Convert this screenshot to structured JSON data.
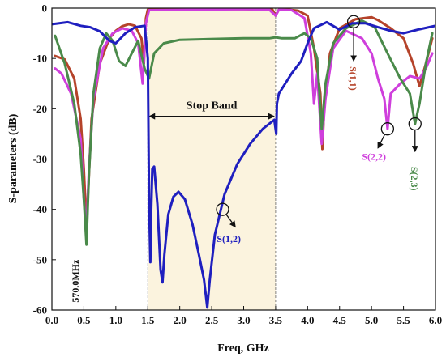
{
  "chart_data": {
    "type": "line",
    "xlabel": "Freq, GHz",
    "ylabel": "S-parameters (dB)",
    "xlim": [
      0,
      6
    ],
    "ylim": [
      -60,
      0
    ],
    "x_ticks": [
      "0.0",
      "0.5",
      "1.0",
      "1.5",
      "2.0",
      "2.5",
      "3.0",
      "3.5",
      "4.0",
      "4.5",
      "5.0",
      "5.5",
      "6.0"
    ],
    "y_ticks": [
      "0",
      "-10",
      "-20",
      "-30",
      "-40",
      "-50",
      "-60"
    ],
    "grid": false,
    "stop_band": {
      "x_start": 1.5,
      "x_end": 3.5,
      "label": "Stop Band",
      "arrow_y": -21.5,
      "fill_color": "#fbf3de"
    },
    "series": [
      {
        "name": "S(1,1)",
        "color": "#b5432a",
        "points": [
          [
            0.05,
            -9.5
          ],
          [
            0.2,
            -10.2
          ],
          [
            0.35,
            -14
          ],
          [
            0.45,
            -22
          ],
          [
            0.5,
            -32
          ],
          [
            0.54,
            -43
          ],
          [
            0.57,
            -36
          ],
          [
            0.62,
            -22
          ],
          [
            0.75,
            -11
          ],
          [
            0.9,
            -6
          ],
          [
            1.0,
            -4.5
          ],
          [
            1.1,
            -3.6
          ],
          [
            1.2,
            -3.2
          ],
          [
            1.3,
            -3.5
          ],
          [
            1.4,
            -6
          ],
          [
            1.44,
            -11
          ],
          [
            1.47,
            -2
          ],
          [
            1.5,
            -0.3
          ],
          [
            2.0,
            -0.2
          ],
          [
            3.0,
            -0.2
          ],
          [
            3.45,
            -0.3
          ],
          [
            3.5,
            -1.5
          ],
          [
            3.55,
            -0.3
          ],
          [
            3.7,
            -0.3
          ],
          [
            3.85,
            -0.5
          ],
          [
            4.0,
            -1.5
          ],
          [
            4.1,
            -8
          ],
          [
            4.2,
            -17
          ],
          [
            4.23,
            -28
          ],
          [
            4.26,
            -20
          ],
          [
            4.35,
            -9
          ],
          [
            4.5,
            -4
          ],
          [
            4.75,
            -2.2
          ],
          [
            5.0,
            -1.8
          ],
          [
            5.1,
            -2.4
          ],
          [
            5.3,
            -4
          ],
          [
            5.5,
            -6
          ],
          [
            5.65,
            -11
          ],
          [
            5.75,
            -15.5
          ],
          [
            5.85,
            -11
          ],
          [
            5.95,
            -6
          ]
        ]
      },
      {
        "name": "S(2,2)",
        "color": "#cf3fdc",
        "points": [
          [
            0.05,
            -12
          ],
          [
            0.15,
            -13
          ],
          [
            0.3,
            -17
          ],
          [
            0.45,
            -26
          ],
          [
            0.5,
            -38
          ],
          [
            0.54,
            -44
          ],
          [
            0.58,
            -32
          ],
          [
            0.65,
            -18
          ],
          [
            0.8,
            -8
          ],
          [
            0.95,
            -5
          ],
          [
            1.1,
            -4
          ],
          [
            1.25,
            -4.5
          ],
          [
            1.35,
            -7
          ],
          [
            1.42,
            -15
          ],
          [
            1.47,
            -3
          ],
          [
            1.52,
            -0.4
          ],
          [
            3.0,
            -0.2
          ],
          [
            3.4,
            -0.3
          ],
          [
            3.5,
            -1.5
          ],
          [
            3.55,
            -0.3
          ],
          [
            3.75,
            -0.4
          ],
          [
            3.95,
            -2
          ],
          [
            4.05,
            -9
          ],
          [
            4.1,
            -19
          ],
          [
            4.15,
            -13
          ],
          [
            4.22,
            -27
          ],
          [
            4.28,
            -18
          ],
          [
            4.4,
            -8
          ],
          [
            4.6,
            -4.5
          ],
          [
            4.85,
            -6
          ],
          [
            5.0,
            -9
          ],
          [
            5.1,
            -14
          ],
          [
            5.2,
            -18
          ],
          [
            5.25,
            -24
          ],
          [
            5.3,
            -17
          ],
          [
            5.45,
            -15
          ],
          [
            5.6,
            -13.5
          ],
          [
            5.75,
            -14
          ],
          [
            5.85,
            -12
          ],
          [
            5.95,
            -9
          ]
        ]
      },
      {
        "name": "S(2,3)",
        "color": "#4a8a4a",
        "points": [
          [
            0.05,
            -5.5
          ],
          [
            0.2,
            -11
          ],
          [
            0.35,
            -19
          ],
          [
            0.45,
            -29
          ],
          [
            0.5,
            -38
          ],
          [
            0.54,
            -47
          ],
          [
            0.58,
            -33
          ],
          [
            0.65,
            -17
          ],
          [
            0.75,
            -8
          ],
          [
            0.85,
            -5
          ],
          [
            0.95,
            -6.5
          ],
          [
            1.05,
            -10.5
          ],
          [
            1.15,
            -11.5
          ],
          [
            1.25,
            -9
          ],
          [
            1.35,
            -6.5
          ],
          [
            1.45,
            -12
          ],
          [
            1.52,
            -14
          ],
          [
            1.6,
            -9
          ],
          [
            1.75,
            -7
          ],
          [
            2.0,
            -6.3
          ],
          [
            3.0,
            -6
          ],
          [
            3.4,
            -6
          ],
          [
            3.5,
            -5.8
          ],
          [
            3.6,
            -6
          ],
          [
            3.8,
            -6
          ],
          [
            3.95,
            -5
          ],
          [
            4.05,
            -6
          ],
          [
            4.15,
            -10
          ],
          [
            4.22,
            -24
          ],
          [
            4.28,
            -15
          ],
          [
            4.4,
            -7
          ],
          [
            4.6,
            -4
          ],
          [
            4.85,
            -2.5
          ],
          [
            5.05,
            -3.8
          ],
          [
            5.25,
            -9
          ],
          [
            5.45,
            -14
          ],
          [
            5.6,
            -17
          ],
          [
            5.68,
            -23
          ],
          [
            5.75,
            -19
          ],
          [
            5.85,
            -11
          ],
          [
            5.95,
            -5
          ]
        ]
      },
      {
        "name": "S(1,2)",
        "color": "#1f1fbf",
        "points": [
          [
            0.0,
            -3.2
          ],
          [
            0.25,
            -2.8
          ],
          [
            0.45,
            -3.5
          ],
          [
            0.6,
            -3.8
          ],
          [
            0.75,
            -4.6
          ],
          [
            0.9,
            -6.5
          ],
          [
            1.0,
            -7
          ],
          [
            1.15,
            -5
          ],
          [
            1.3,
            -3.8
          ],
          [
            1.45,
            -3.5
          ],
          [
            1.5,
            -10
          ],
          [
            1.52,
            -38
          ],
          [
            1.54,
            -50.5
          ],
          [
            1.55,
            -42
          ],
          [
            1.57,
            -32
          ],
          [
            1.6,
            -31.5
          ],
          [
            1.65,
            -39
          ],
          [
            1.7,
            -52
          ],
          [
            1.73,
            -54.5
          ],
          [
            1.76,
            -49
          ],
          [
            1.82,
            -41
          ],
          [
            1.9,
            -37.5
          ],
          [
            1.98,
            -36.5
          ],
          [
            2.08,
            -38
          ],
          [
            2.2,
            -43
          ],
          [
            2.3,
            -49
          ],
          [
            2.38,
            -54
          ],
          [
            2.43,
            -59.5
          ],
          [
            2.47,
            -54
          ],
          [
            2.55,
            -45
          ],
          [
            2.7,
            -37
          ],
          [
            2.9,
            -31
          ],
          [
            3.1,
            -27
          ],
          [
            3.3,
            -24
          ],
          [
            3.48,
            -22.2
          ],
          [
            3.51,
            -25
          ],
          [
            3.52,
            -19
          ],
          [
            3.55,
            -17
          ],
          [
            3.6,
            -16
          ],
          [
            3.75,
            -13
          ],
          [
            3.9,
            -10.5
          ],
          [
            4.0,
            -7
          ],
          [
            4.1,
            -4
          ],
          [
            4.3,
            -2.8
          ],
          [
            4.5,
            -4.3
          ],
          [
            4.7,
            -3
          ],
          [
            4.9,
            -3
          ],
          [
            5.1,
            -3.8
          ],
          [
            5.3,
            -4.5
          ],
          [
            5.5,
            -5
          ],
          [
            5.75,
            -4.2
          ],
          [
            6.0,
            -3.5
          ]
        ]
      }
    ],
    "annotations": [
      {
        "text": "S(1,1)",
        "color": "#b5432a",
        "circle": [
          4.72,
          -2.7
        ],
        "arrow_to": [
          4.72,
          -10.5
        ],
        "text_at": [
          4.66,
          -11.6
        ],
        "rotate": 90
      },
      {
        "text": "S(2,2)",
        "color": "#cf3fdc",
        "circle": [
          5.25,
          -24
        ],
        "arrow_to": [
          5.1,
          -27.8
        ],
        "text_at": [
          4.85,
          -30.2
        ]
      },
      {
        "text": "S(2,3)",
        "color": "#4a8a4a",
        "circle": [
          5.68,
          -23
        ],
        "arrow_to": [
          5.68,
          -28.5
        ],
        "text_at": [
          5.62,
          -31.5
        ],
        "rotate": 90
      },
      {
        "text": "S(1,2)",
        "color": "#1f1fbf",
        "circle": [
          2.67,
          -40
        ],
        "arrow_to": [
          2.87,
          -43.5
        ],
        "text_at": [
          2.58,
          -46.5
        ]
      },
      {
        "text": "570.0MHz",
        "color": "#111111",
        "text_at": [
          0.42,
          -58.5
        ],
        "rotate": -90
      }
    ]
  }
}
